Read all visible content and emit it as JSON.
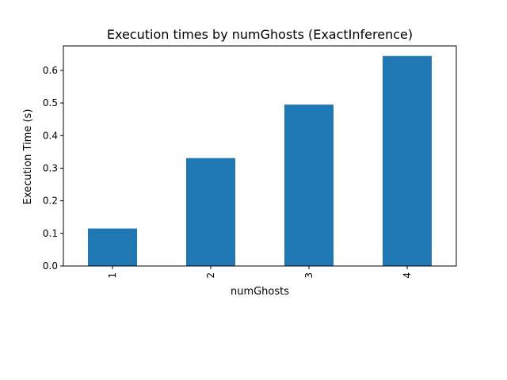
{
  "chart_data": {
    "type": "bar",
    "title": "Execution times by numGhosts (ExactInference)",
    "xlabel": "numGhosts",
    "ylabel": "Execution Time (s)",
    "categories": [
      "1",
      "2",
      "3",
      "4"
    ],
    "values": [
      0.115,
      0.331,
      0.495,
      0.644
    ],
    "ylim": [
      0,
      0.675
    ],
    "yticks": [
      0.0,
      0.1,
      0.2,
      0.3,
      0.4,
      0.5,
      0.6
    ],
    "ytick_labels": [
      "0.0",
      "0.1",
      "0.2",
      "0.3",
      "0.4",
      "0.5",
      "0.6"
    ],
    "bar_color": "#1f77b4",
    "grid": false,
    "legend": false
  }
}
